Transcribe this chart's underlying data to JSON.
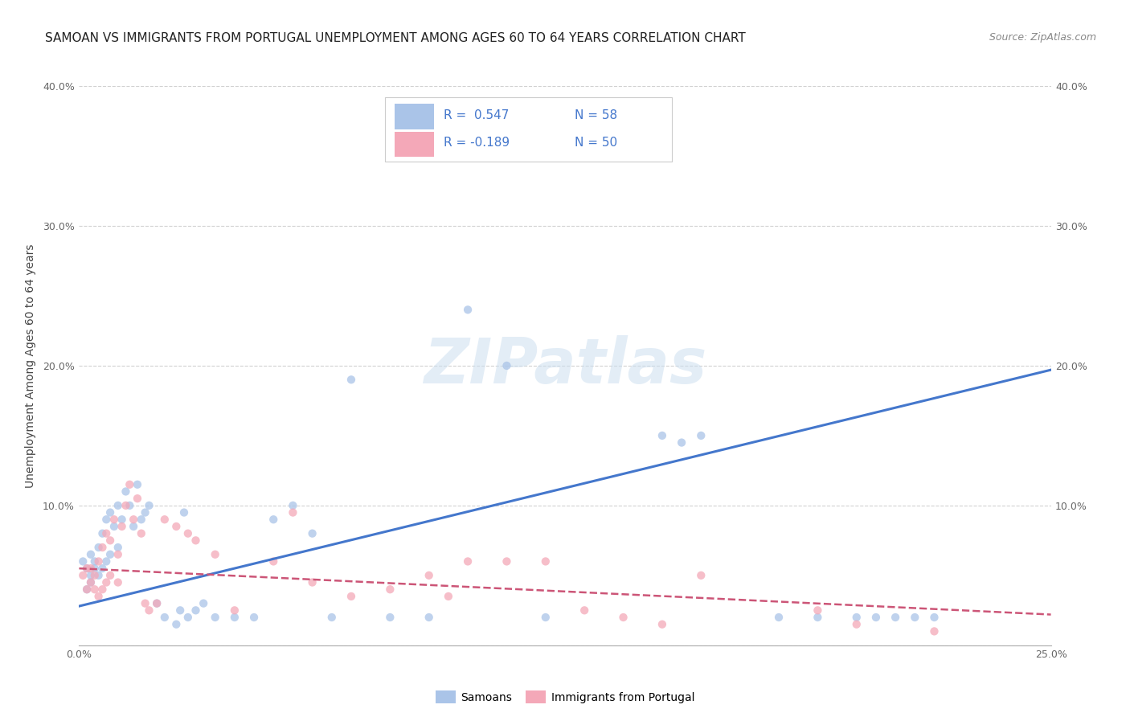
{
  "title": "SAMOAN VS IMMIGRANTS FROM PORTUGAL UNEMPLOYMENT AMONG AGES 60 TO 64 YEARS CORRELATION CHART",
  "source": "Source: ZipAtlas.com",
  "ylabel": "Unemployment Among Ages 60 to 64 years",
  "xlim": [
    0.0,
    0.25
  ],
  "ylim": [
    0.0,
    0.4
  ],
  "xticks": [
    0.0,
    0.05,
    0.1,
    0.15,
    0.2,
    0.25
  ],
  "yticks": [
    0.0,
    0.1,
    0.2,
    0.3,
    0.4
  ],
  "xtick_labels": [
    "0.0%",
    "",
    "",
    "",
    "",
    "25.0%"
  ],
  "ytick_labels": [
    "",
    "10.0%",
    "20.0%",
    "30.0%",
    "40.0%"
  ],
  "watermark": "ZIPatlas",
  "samoans_x": [
    0.001,
    0.002,
    0.002,
    0.003,
    0.003,
    0.003,
    0.004,
    0.004,
    0.005,
    0.005,
    0.006,
    0.006,
    0.007,
    0.007,
    0.008,
    0.008,
    0.009,
    0.01,
    0.01,
    0.011,
    0.012,
    0.013,
    0.014,
    0.015,
    0.016,
    0.017,
    0.018,
    0.02,
    0.022,
    0.025,
    0.026,
    0.027,
    0.028,
    0.03,
    0.032,
    0.035,
    0.04,
    0.045,
    0.05,
    0.055,
    0.06,
    0.065,
    0.07,
    0.08,
    0.09,
    0.1,
    0.11,
    0.12,
    0.15,
    0.155,
    0.16,
    0.18,
    0.19,
    0.2,
    0.205,
    0.21,
    0.215,
    0.22
  ],
  "samoans_y": [
    0.06,
    0.055,
    0.04,
    0.065,
    0.05,
    0.045,
    0.06,
    0.055,
    0.07,
    0.05,
    0.08,
    0.055,
    0.09,
    0.06,
    0.095,
    0.065,
    0.085,
    0.1,
    0.07,
    0.09,
    0.11,
    0.1,
    0.085,
    0.115,
    0.09,
    0.095,
    0.1,
    0.03,
    0.02,
    0.015,
    0.025,
    0.095,
    0.02,
    0.025,
    0.03,
    0.02,
    0.02,
    0.02,
    0.09,
    0.1,
    0.08,
    0.02,
    0.19,
    0.02,
    0.02,
    0.24,
    0.2,
    0.02,
    0.15,
    0.145,
    0.15,
    0.02,
    0.02,
    0.02,
    0.02,
    0.02,
    0.02,
    0.02
  ],
  "portugal_x": [
    0.001,
    0.002,
    0.002,
    0.003,
    0.003,
    0.004,
    0.004,
    0.005,
    0.005,
    0.006,
    0.006,
    0.007,
    0.007,
    0.008,
    0.008,
    0.009,
    0.01,
    0.01,
    0.011,
    0.012,
    0.013,
    0.014,
    0.015,
    0.016,
    0.017,
    0.018,
    0.02,
    0.022,
    0.025,
    0.028,
    0.03,
    0.035,
    0.04,
    0.05,
    0.055,
    0.06,
    0.07,
    0.08,
    0.09,
    0.095,
    0.1,
    0.11,
    0.12,
    0.13,
    0.14,
    0.15,
    0.16,
    0.19,
    0.2,
    0.22
  ],
  "portugal_y": [
    0.05,
    0.055,
    0.04,
    0.045,
    0.055,
    0.05,
    0.04,
    0.06,
    0.035,
    0.07,
    0.04,
    0.08,
    0.045,
    0.075,
    0.05,
    0.09,
    0.065,
    0.045,
    0.085,
    0.1,
    0.115,
    0.09,
    0.105,
    0.08,
    0.03,
    0.025,
    0.03,
    0.09,
    0.085,
    0.08,
    0.075,
    0.065,
    0.025,
    0.06,
    0.095,
    0.045,
    0.035,
    0.04,
    0.05,
    0.035,
    0.06,
    0.06,
    0.06,
    0.025,
    0.02,
    0.015,
    0.05,
    0.025,
    0.015,
    0.01
  ],
  "blue_line_x": [
    0.0,
    0.25
  ],
  "blue_line_y": [
    0.028,
    0.197
  ],
  "pink_line_x": [
    0.0,
    0.25
  ],
  "pink_line_y": [
    0.055,
    0.022
  ],
  "dot_color_samoans": "#aac4e8",
  "dot_color_portugal": "#f4a8b8",
  "line_color_samoans": "#4477cc",
  "line_color_portugal": "#cc5577",
  "background_color": "#ffffff",
  "grid_color": "#cccccc",
  "title_fontsize": 11,
  "source_fontsize": 9,
  "axis_label_fontsize": 10,
  "tick_fontsize": 9,
  "dot_size": 55,
  "dot_alpha": 0.75,
  "legend_R1": "R =  0.547",
  "legend_N1": "N = 58",
  "legend_R2": "R = -0.189",
  "legend_N2": "N = 50",
  "legend_color_blue": "#4477cc",
  "legend_color_pink": "#cc5577"
}
